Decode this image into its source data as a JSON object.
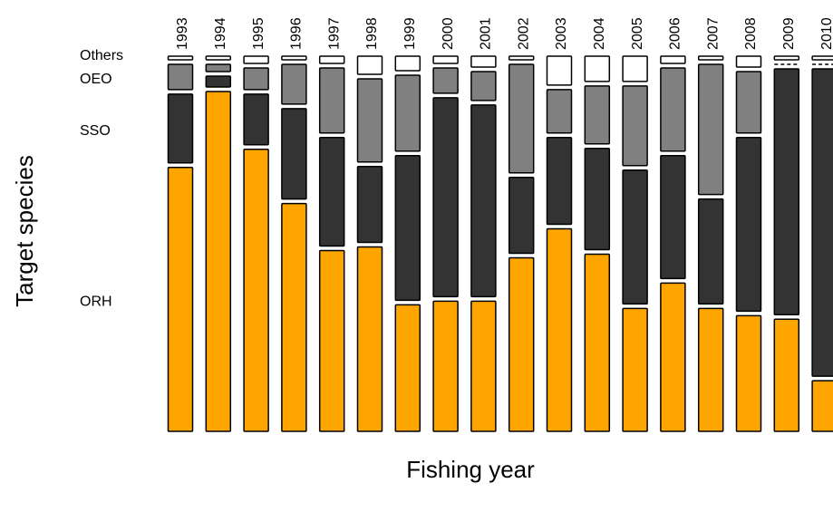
{
  "chart_data": {
    "type": "mosaic",
    "xlabel": "Fishing year",
    "ylabel": "Target species",
    "categories": [
      "1993",
      "1994",
      "1995",
      "1996",
      "1997",
      "1998",
      "1999",
      "2000",
      "2001",
      "2002",
      "2003",
      "2004",
      "2005",
      "2006",
      "2007",
      "2008",
      "2009",
      "2010"
    ],
    "series": [
      {
        "name": "ORH",
        "color": "#ffa500",
        "values": [
          73,
          94,
          78,
          63,
          50,
          51,
          35,
          36,
          36,
          48,
          56,
          49,
          34,
          41,
          34,
          32,
          31,
          14
        ]
      },
      {
        "name": "SSO",
        "color": "#333333",
        "values": [
          19,
          3,
          14,
          25,
          30,
          21,
          40,
          55,
          53,
          21,
          24,
          28,
          37,
          34,
          29,
          48,
          68,
          85
        ]
      },
      {
        "name": "OEO",
        "color": "#808080",
        "values": [
          7,
          2,
          6,
          11,
          18,
          23,
          21,
          7,
          8,
          30,
          12,
          16,
          22,
          23,
          36,
          17,
          0,
          0
        ]
      },
      {
        "name": "Others",
        "color": "#ffffff",
        "values": [
          1,
          1,
          2,
          1,
          2,
          5,
          4,
          2,
          3,
          1,
          8,
          7,
          7,
          2,
          1,
          3,
          1,
          1
        ]
      }
    ]
  }
}
